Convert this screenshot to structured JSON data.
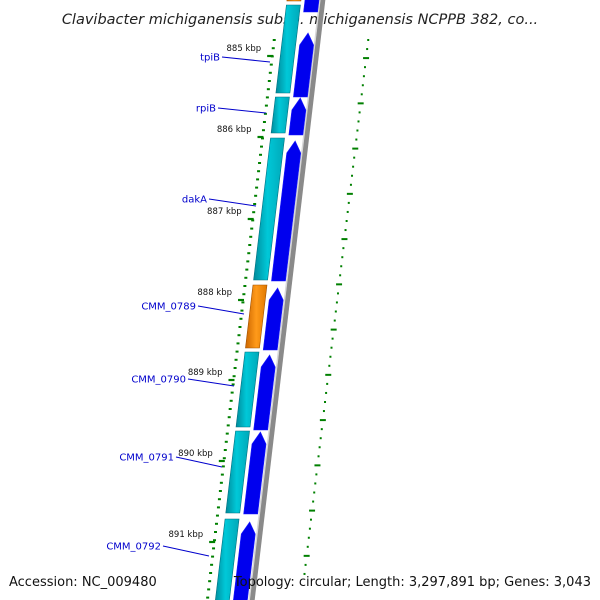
{
  "title": "Clavibacter michiganensis subsp. michiganensis NCPPB 382, co...",
  "accession": "Accession: NC_009480",
  "summary": "Topology: circular; Length: 3,297,891 bp; Genes: 3,043",
  "ticks": [
    {
      "label": "885 kbp",
      "position_kbp": 885
    },
    {
      "label": "886 kbp",
      "position_kbp": 886
    },
    {
      "label": "887 kbp",
      "position_kbp": 887
    },
    {
      "label": "888 kbp",
      "position_kbp": 888
    },
    {
      "label": "889 kbp",
      "position_kbp": 889
    },
    {
      "label": "890 kbp",
      "position_kbp": 890
    },
    {
      "label": "891 kbp",
      "position_kbp": 891
    }
  ],
  "genes": [
    {
      "name": "tpiB"
    },
    {
      "name": "rpiB"
    },
    {
      "name": "dakA"
    },
    {
      "name": "CMM_0789"
    },
    {
      "name": "CMM_0790"
    },
    {
      "name": "CMM_0791"
    },
    {
      "name": "CMM_0792"
    }
  ],
  "colors": {
    "cds_track": "#0000ee",
    "gene_track_teal": "#00b4c8",
    "gene_track_orange": "#ff8c00",
    "gene_label": "#0000cc",
    "tick_marks": "#008000",
    "backbone": "#888888"
  }
}
